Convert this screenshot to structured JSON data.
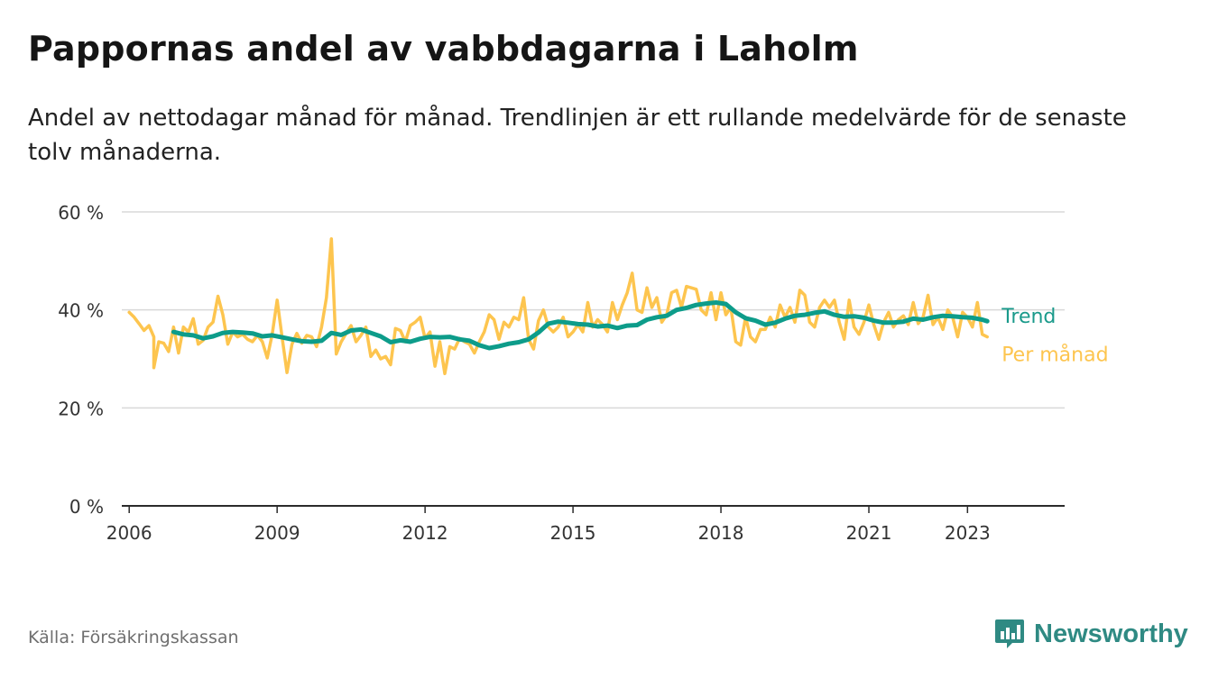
{
  "title": "Pappornas andel av vabbdagarna i Laholm",
  "subtitle": "Andel av nettodagar månad för månad. Trendlinjen är ett rullande medelvärde för de senaste tolv månaderna.",
  "source": "Källa: Försäkringskassan",
  "brand": "Newsworthy",
  "colors": {
    "monthly": "#fdc54f",
    "trend": "#0d9c8a",
    "trend_label": "#1a9a8b",
    "brand": "#2f8a83"
  },
  "chart_data": {
    "type": "line",
    "ylim": [
      0,
      60
    ],
    "y_ticks": [
      0,
      20,
      40,
      60
    ],
    "y_tick_labels": [
      "0 %",
      "20 %",
      "40 %",
      "60 %"
    ],
    "x_ticks": [
      2006,
      2009,
      2012,
      2015,
      2018,
      2021,
      2023
    ],
    "x_tick_labels": [
      "2006",
      "2009",
      "2012",
      "2015",
      "2018",
      "2021",
      "2023"
    ],
    "grid": true,
    "series": [
      {
        "name": "Per månad",
        "color": "#fdc54f",
        "points": [
          [
            2006.0,
            39.5
          ],
          [
            2006.1,
            38.5
          ],
          [
            2006.2,
            37.2
          ],
          [
            2006.3,
            35.8
          ],
          [
            2006.4,
            36.8
          ],
          [
            2006.5,
            34.5
          ],
          [
            2006.5,
            28.2
          ],
          [
            2006.6,
            33.5
          ],
          [
            2006.7,
            33.2
          ],
          [
            2006.8,
            31.5
          ],
          [
            2006.9,
            36.5
          ],
          [
            2007.0,
            31.2
          ],
          [
            2007.1,
            36.5
          ],
          [
            2007.2,
            35.5
          ],
          [
            2007.3,
            38.2
          ],
          [
            2007.4,
            33.0
          ],
          [
            2007.5,
            33.8
          ],
          [
            2007.6,
            36.5
          ],
          [
            2007.7,
            37.5
          ],
          [
            2007.8,
            42.8
          ],
          [
            2007.9,
            39.0
          ],
          [
            2008.0,
            33.0
          ],
          [
            2008.1,
            35.5
          ],
          [
            2008.2,
            34.5
          ],
          [
            2008.3,
            35.0
          ],
          [
            2008.4,
            34.0
          ],
          [
            2008.5,
            33.5
          ],
          [
            2008.6,
            34.8
          ],
          [
            2008.7,
            33.5
          ],
          [
            2008.8,
            30.2
          ],
          [
            2008.9,
            35.0
          ],
          [
            2009.0,
            42.0
          ],
          [
            2009.1,
            34.5
          ],
          [
            2009.2,
            27.2
          ],
          [
            2009.3,
            33.0
          ],
          [
            2009.4,
            35.2
          ],
          [
            2009.5,
            33.2
          ],
          [
            2009.6,
            34.8
          ],
          [
            2009.7,
            34.5
          ],
          [
            2009.8,
            32.5
          ],
          [
            2009.9,
            36.5
          ],
          [
            2010.0,
            42.5
          ],
          [
            2010.1,
            54.5
          ],
          [
            2010.2,
            31.0
          ],
          [
            2010.3,
            33.5
          ],
          [
            2010.4,
            35.2
          ],
          [
            2010.5,
            36.8
          ],
          [
            2010.6,
            33.5
          ],
          [
            2010.7,
            34.8
          ],
          [
            2010.8,
            36.5
          ],
          [
            2010.9,
            30.5
          ],
          [
            2011.0,
            31.8
          ],
          [
            2011.1,
            30.0
          ],
          [
            2011.2,
            30.5
          ],
          [
            2011.3,
            28.8
          ],
          [
            2011.4,
            36.2
          ],
          [
            2011.5,
            35.8
          ],
          [
            2011.6,
            33.5
          ],
          [
            2011.7,
            36.8
          ],
          [
            2011.8,
            37.5
          ],
          [
            2011.9,
            38.5
          ],
          [
            2012.0,
            34.2
          ],
          [
            2012.1,
            35.5
          ],
          [
            2012.2,
            28.5
          ],
          [
            2012.3,
            33.5
          ],
          [
            2012.4,
            27.0
          ],
          [
            2012.5,
            32.5
          ],
          [
            2012.6,
            32.0
          ],
          [
            2012.7,
            34.2
          ],
          [
            2012.8,
            33.5
          ],
          [
            2012.9,
            33.0
          ],
          [
            2013.0,
            31.2
          ],
          [
            2013.1,
            33.5
          ],
          [
            2013.2,
            35.5
          ],
          [
            2013.3,
            39.0
          ],
          [
            2013.4,
            38.0
          ],
          [
            2013.5,
            34.0
          ],
          [
            2013.6,
            37.5
          ],
          [
            2013.7,
            36.5
          ],
          [
            2013.8,
            38.5
          ],
          [
            2013.9,
            38.0
          ],
          [
            2014.0,
            42.5
          ],
          [
            2014.1,
            34.0
          ],
          [
            2014.2,
            32.0
          ],
          [
            2014.3,
            37.8
          ],
          [
            2014.4,
            40.0
          ],
          [
            2014.5,
            36.5
          ],
          [
            2014.6,
            35.5
          ],
          [
            2014.7,
            36.5
          ],
          [
            2014.8,
            38.5
          ],
          [
            2014.9,
            34.5
          ],
          [
            2015.0,
            35.5
          ],
          [
            2015.1,
            37.0
          ],
          [
            2015.2,
            35.5
          ],
          [
            2015.3,
            41.5
          ],
          [
            2015.4,
            36.5
          ],
          [
            2015.5,
            38.0
          ],
          [
            2015.6,
            37.0
          ],
          [
            2015.7,
            35.5
          ],
          [
            2015.8,
            41.5
          ],
          [
            2015.9,
            38.0
          ],
          [
            2016.0,
            41.0
          ],
          [
            2016.1,
            43.5
          ],
          [
            2016.2,
            47.5
          ],
          [
            2016.3,
            40.0
          ],
          [
            2016.4,
            39.5
          ],
          [
            2016.5,
            44.5
          ],
          [
            2016.6,
            40.5
          ],
          [
            2016.7,
            42.5
          ],
          [
            2016.8,
            37.5
          ],
          [
            2016.9,
            39.0
          ],
          [
            2017.0,
            43.5
          ],
          [
            2017.1,
            44.0
          ],
          [
            2017.2,
            40.5
          ],
          [
            2017.3,
            44.8
          ],
          [
            2017.4,
            44.5
          ],
          [
            2017.5,
            44.2
          ],
          [
            2017.6,
            40.0
          ],
          [
            2017.7,
            39.0
          ],
          [
            2017.8,
            43.5
          ],
          [
            2017.9,
            38.0
          ],
          [
            2018.0,
            43.5
          ],
          [
            2018.1,
            39.0
          ],
          [
            2018.2,
            40.5
          ],
          [
            2018.3,
            33.5
          ],
          [
            2018.4,
            32.8
          ],
          [
            2018.5,
            38.5
          ],
          [
            2018.6,
            34.5
          ],
          [
            2018.7,
            33.5
          ],
          [
            2018.8,
            36.0
          ],
          [
            2018.9,
            36.0
          ],
          [
            2019.0,
            38.5
          ],
          [
            2019.1,
            36.5
          ],
          [
            2019.2,
            41.0
          ],
          [
            2019.3,
            38.5
          ],
          [
            2019.4,
            40.5
          ],
          [
            2019.5,
            37.5
          ],
          [
            2019.6,
            44.0
          ],
          [
            2019.7,
            43.0
          ],
          [
            2019.8,
            37.5
          ],
          [
            2019.9,
            36.5
          ],
          [
            2020.0,
            40.5
          ],
          [
            2020.1,
            42.0
          ],
          [
            2020.2,
            40.5
          ],
          [
            2020.3,
            42.0
          ],
          [
            2020.4,
            37.5
          ],
          [
            2020.5,
            34.0
          ],
          [
            2020.6,
            42.0
          ],
          [
            2020.7,
            36.5
          ],
          [
            2020.8,
            35.0
          ],
          [
            2020.9,
            37.5
          ],
          [
            2021.0,
            41.0
          ],
          [
            2021.1,
            37.0
          ],
          [
            2021.2,
            34.0
          ],
          [
            2021.3,
            37.5
          ],
          [
            2021.4,
            39.5
          ],
          [
            2021.5,
            36.5
          ],
          [
            2021.6,
            38.0
          ],
          [
            2021.7,
            38.8
          ],
          [
            2021.8,
            37.0
          ],
          [
            2021.9,
            41.5
          ],
          [
            2022.0,
            37.2
          ],
          [
            2022.1,
            38.5
          ],
          [
            2022.2,
            43.0
          ],
          [
            2022.3,
            37.0
          ],
          [
            2022.4,
            38.5
          ],
          [
            2022.5,
            36.0
          ],
          [
            2022.6,
            40.0
          ],
          [
            2022.7,
            38.5
          ],
          [
            2022.8,
            34.5
          ],
          [
            2022.9,
            39.5
          ],
          [
            2023.0,
            38.5
          ],
          [
            2023.1,
            36.5
          ],
          [
            2023.2,
            41.5
          ],
          [
            2023.3,
            35.0
          ],
          [
            2023.4,
            34.5
          ]
        ]
      },
      {
        "name": "Trend",
        "color": "#0d9c8a",
        "points": [
          [
            2006.9,
            35.5
          ],
          [
            2007.1,
            35.0
          ],
          [
            2007.3,
            34.8
          ],
          [
            2007.5,
            34.2
          ],
          [
            2007.7,
            34.6
          ],
          [
            2007.9,
            35.3
          ],
          [
            2008.1,
            35.5
          ],
          [
            2008.3,
            35.4
          ],
          [
            2008.5,
            35.2
          ],
          [
            2008.7,
            34.6
          ],
          [
            2008.9,
            34.8
          ],
          [
            2009.1,
            34.4
          ],
          [
            2009.3,
            34.0
          ],
          [
            2009.5,
            33.6
          ],
          [
            2009.7,
            33.5
          ],
          [
            2009.9,
            33.7
          ],
          [
            2010.1,
            35.3
          ],
          [
            2010.3,
            34.9
          ],
          [
            2010.5,
            35.8
          ],
          [
            2010.7,
            36.0
          ],
          [
            2010.9,
            35.3
          ],
          [
            2011.1,
            34.6
          ],
          [
            2011.3,
            33.4
          ],
          [
            2011.5,
            33.8
          ],
          [
            2011.7,
            33.5
          ],
          [
            2011.9,
            34.1
          ],
          [
            2012.1,
            34.5
          ],
          [
            2012.3,
            34.4
          ],
          [
            2012.5,
            34.5
          ],
          [
            2012.7,
            34.0
          ],
          [
            2012.9,
            33.7
          ],
          [
            2013.1,
            32.8
          ],
          [
            2013.3,
            32.2
          ],
          [
            2013.5,
            32.6
          ],
          [
            2013.7,
            33.1
          ],
          [
            2013.9,
            33.4
          ],
          [
            2014.1,
            34.0
          ],
          [
            2014.3,
            35.4
          ],
          [
            2014.5,
            37.2
          ],
          [
            2014.7,
            37.6
          ],
          [
            2014.9,
            37.4
          ],
          [
            2015.1,
            37.1
          ],
          [
            2015.3,
            37.0
          ],
          [
            2015.5,
            36.6
          ],
          [
            2015.7,
            36.8
          ],
          [
            2015.9,
            36.3
          ],
          [
            2016.1,
            36.8
          ],
          [
            2016.3,
            36.9
          ],
          [
            2016.5,
            38.0
          ],
          [
            2016.7,
            38.5
          ],
          [
            2016.9,
            38.8
          ],
          [
            2017.1,
            40.0
          ],
          [
            2017.3,
            40.4
          ],
          [
            2017.5,
            41.0
          ],
          [
            2017.7,
            41.3
          ],
          [
            2017.9,
            41.5
          ],
          [
            2018.1,
            41.2
          ],
          [
            2018.3,
            39.5
          ],
          [
            2018.5,
            38.3
          ],
          [
            2018.7,
            37.8
          ],
          [
            2018.9,
            37.0
          ],
          [
            2019.1,
            37.4
          ],
          [
            2019.3,
            38.2
          ],
          [
            2019.5,
            38.8
          ],
          [
            2019.7,
            39.0
          ],
          [
            2019.9,
            39.4
          ],
          [
            2020.1,
            39.7
          ],
          [
            2020.3,
            39.0
          ],
          [
            2020.5,
            38.6
          ],
          [
            2020.7,
            38.7
          ],
          [
            2020.9,
            38.4
          ],
          [
            2021.1,
            37.8
          ],
          [
            2021.3,
            37.4
          ],
          [
            2021.5,
            37.4
          ],
          [
            2021.7,
            37.6
          ],
          [
            2021.9,
            38.2
          ],
          [
            2022.1,
            38.0
          ],
          [
            2022.3,
            38.5
          ],
          [
            2022.5,
            38.8
          ],
          [
            2022.7,
            38.7
          ],
          [
            2022.9,
            38.5
          ],
          [
            2023.1,
            38.4
          ],
          [
            2023.3,
            38.0
          ],
          [
            2023.4,
            37.7
          ]
        ]
      }
    ]
  }
}
